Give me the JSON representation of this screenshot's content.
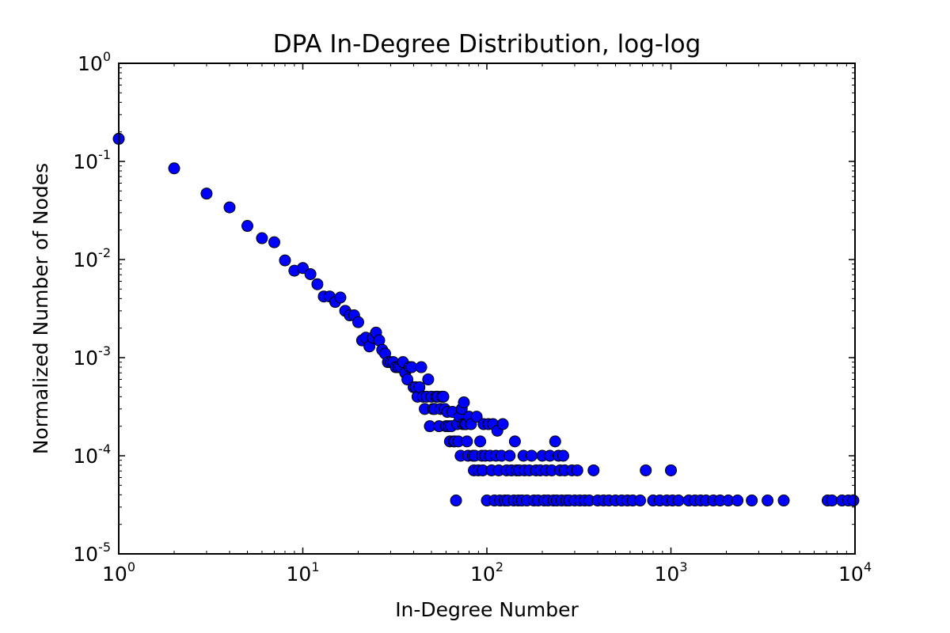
{
  "chart_data": {
    "type": "scatter",
    "title": "DPA In-Degree Distribution, log-log",
    "xlabel": "In-Degree Number",
    "ylabel": "Normalized Number of Nodes",
    "xscale": "log",
    "yscale": "log",
    "xlim": [
      1,
      10000
    ],
    "ylim": [
      1e-05,
      1
    ],
    "x_ticks": [
      {
        "base": "10",
        "exp": "0",
        "value": 1
      },
      {
        "base": "10",
        "exp": "1",
        "value": 10
      },
      {
        "base": "10",
        "exp": "2",
        "value": 100
      },
      {
        "base": "10",
        "exp": "3",
        "value": 1000
      },
      {
        "base": "10",
        "exp": "4",
        "value": 10000
      }
    ],
    "y_ticks": [
      {
        "base": "10",
        "exp": "-5",
        "value": 1e-05
      },
      {
        "base": "10",
        "exp": "-4",
        "value": 0.0001
      },
      {
        "base": "10",
        "exp": "-3",
        "value": 0.001
      },
      {
        "base": "10",
        "exp": "-2",
        "value": 0.01
      },
      {
        "base": "10",
        "exp": "-1",
        "value": 0.1
      },
      {
        "base": "10",
        "exp": "0",
        "value": 1
      }
    ],
    "grid": false,
    "marker_color": "#0000ff",
    "marker_edge_color": "#000000",
    "points": [
      [
        1,
        0.17
      ],
      [
        2,
        0.085
      ],
      [
        3,
        0.047
      ],
      [
        4,
        0.034
      ],
      [
        5,
        0.022
      ],
      [
        6,
        0.0165
      ],
      [
        7,
        0.015
      ],
      [
        8,
        0.0098
      ],
      [
        9,
        0.0077
      ],
      [
        10,
        0.0082
      ],
      [
        11,
        0.0071
      ],
      [
        12,
        0.0056
      ],
      [
        13,
        0.0042
      ],
      [
        14,
        0.0042
      ],
      [
        15,
        0.0037
      ],
      [
        16,
        0.0041
      ],
      [
        17,
        0.003
      ],
      [
        18,
        0.0027
      ],
      [
        19,
        0.0027
      ],
      [
        20,
        0.0023
      ],
      [
        21,
        0.0015
      ],
      [
        22,
        0.0016
      ],
      [
        23,
        0.0013
      ],
      [
        24,
        0.0016
      ],
      [
        25,
        0.0018
      ],
      [
        26,
        0.0015
      ],
      [
        27,
        0.0012
      ],
      [
        28,
        0.0011
      ],
      [
        29,
        0.0009
      ],
      [
        30,
        0.0009
      ],
      [
        31,
        0.0009
      ],
      [
        32,
        0.0008
      ],
      [
        33,
        0.0008
      ],
      [
        34,
        0.0008
      ],
      [
        35,
        0.0009
      ],
      [
        36,
        0.0007
      ],
      [
        37,
        0.0006
      ],
      [
        38,
        0.0008
      ],
      [
        39,
        0.0008
      ],
      [
        40,
        0.0005
      ],
      [
        41,
        0.0005
      ],
      [
        42,
        0.0004
      ],
      [
        43,
        0.0005
      ],
      [
        44,
        0.0008
      ],
      [
        45,
        0.0004
      ],
      [
        46,
        0.0003
      ],
      [
        47,
        0.0004
      ],
      [
        48,
        0.0006
      ],
      [
        49,
        0.0002
      ],
      [
        50,
        0.0004
      ],
      [
        51,
        0.0003
      ],
      [
        52,
        0.0003
      ],
      [
        53,
        0.0004
      ],
      [
        54,
        0.0004
      ],
      [
        55,
        0.0002
      ],
      [
        56,
        0.0003
      ],
      [
        57,
        0.0004
      ],
      [
        58,
        0.0004
      ],
      [
        59,
        0.0003
      ],
      [
        60,
        0.0002
      ],
      [
        61,
        0.00028
      ],
      [
        62,
        0.0002
      ],
      [
        63,
        0.00014
      ],
      [
        64,
        0.0002
      ],
      [
        65,
        0.00028
      ],
      [
        66,
        0.00014
      ],
      [
        67,
        0.00014
      ],
      [
        68,
        3.5e-05
      ],
      [
        69,
        0.00021
      ],
      [
        70,
        0.00014
      ],
      [
        71,
        0.00025
      ],
      [
        72,
        0.0001
      ],
      [
        73,
        0.0003
      ],
      [
        74,
        0.00021
      ],
      [
        75,
        0.00035
      ],
      [
        76,
        0.00021
      ],
      [
        77,
        0.00021
      ],
      [
        78,
        0.00014
      ],
      [
        79,
        0.0001
      ],
      [
        80,
        0.00025
      ],
      [
        82,
        0.00021
      ],
      [
        84,
        0.0001
      ],
      [
        85,
        7.1e-05
      ],
      [
        86,
        0.0001
      ],
      [
        88,
        0.00025
      ],
      [
        90,
        7.1e-05
      ],
      [
        92,
        0.00014
      ],
      [
        94,
        0.0001
      ],
      [
        95,
        7.1e-05
      ],
      [
        96,
        0.00021
      ],
      [
        98,
        0.0001
      ],
      [
        100,
        3.5e-05
      ],
      [
        102,
        0.00021
      ],
      [
        104,
        0.0001
      ],
      [
        106,
        7.1e-05
      ],
      [
        108,
        0.00021
      ],
      [
        110,
        3.5e-05
      ],
      [
        112,
        0.0001
      ],
      [
        114,
        0.00018
      ],
      [
        116,
        7.1e-05
      ],
      [
        118,
        3.5e-05
      ],
      [
        120,
        0.0001
      ],
      [
        122,
        0.00021
      ],
      [
        125,
        3.5e-05
      ],
      [
        128,
        7.1e-05
      ],
      [
        130,
        3.5e-05
      ],
      [
        133,
        0.0001
      ],
      [
        136,
        7.1e-05
      ],
      [
        140,
        3.5e-05
      ],
      [
        142,
        0.00014
      ],
      [
        145,
        7.1e-05
      ],
      [
        148,
        3.5e-05
      ],
      [
        150,
        7.1e-05
      ],
      [
        155,
        3.5e-05
      ],
      [
        158,
        0.0001
      ],
      [
        160,
        7.1e-05
      ],
      [
        165,
        3.5e-05
      ],
      [
        170,
        7.1e-05
      ],
      [
        175,
        0.0001
      ],
      [
        180,
        3.5e-05
      ],
      [
        185,
        7.1e-05
      ],
      [
        190,
        3.5e-05
      ],
      [
        195,
        7.1e-05
      ],
      [
        200,
        0.0001
      ],
      [
        205,
        3.5e-05
      ],
      [
        210,
        7.1e-05
      ],
      [
        215,
        3.5e-05
      ],
      [
        220,
        0.0001
      ],
      [
        225,
        7.1e-05
      ],
      [
        230,
        3.5e-05
      ],
      [
        235,
        0.00014
      ],
      [
        240,
        3.5e-05
      ],
      [
        245,
        0.0001
      ],
      [
        250,
        7.1e-05
      ],
      [
        255,
        3.5e-05
      ],
      [
        260,
        0.0001
      ],
      [
        265,
        7.1e-05
      ],
      [
        270,
        3.5e-05
      ],
      [
        280,
        3.5e-05
      ],
      [
        290,
        7.1e-05
      ],
      [
        300,
        3.5e-05
      ],
      [
        310,
        7.1e-05
      ],
      [
        320,
        3.5e-05
      ],
      [
        340,
        3.5e-05
      ],
      [
        360,
        3.5e-05
      ],
      [
        380,
        7.1e-05
      ],
      [
        400,
        3.5e-05
      ],
      [
        430,
        3.5e-05
      ],
      [
        460,
        3.5e-05
      ],
      [
        500,
        3.5e-05
      ],
      [
        540,
        3.5e-05
      ],
      [
        580,
        3.5e-05
      ],
      [
        620,
        3.5e-05
      ],
      [
        680,
        3.5e-05
      ],
      [
        730,
        7.1e-05
      ],
      [
        800,
        3.5e-05
      ],
      [
        870,
        3.5e-05
      ],
      [
        950,
        3.5e-05
      ],
      [
        1000,
        7.1e-05
      ],
      [
        1020,
        3.5e-05
      ],
      [
        1100,
        3.5e-05
      ],
      [
        1250,
        3.5e-05
      ],
      [
        1350,
        3.5e-05
      ],
      [
        1450,
        3.5e-05
      ],
      [
        1550,
        3.5e-05
      ],
      [
        1700,
        3.5e-05
      ],
      [
        1850,
        3.5e-05
      ],
      [
        2050,
        3.5e-05
      ],
      [
        2300,
        3.5e-05
      ],
      [
        2750,
        3.5e-05
      ],
      [
        3350,
        3.5e-05
      ],
      [
        4100,
        3.5e-05
      ],
      [
        7100,
        3.5e-05
      ],
      [
        7500,
        3.5e-05
      ],
      [
        8500,
        3.5e-05
      ],
      [
        9200,
        3.5e-05
      ],
      [
        9800,
        3.5e-05
      ]
    ]
  }
}
